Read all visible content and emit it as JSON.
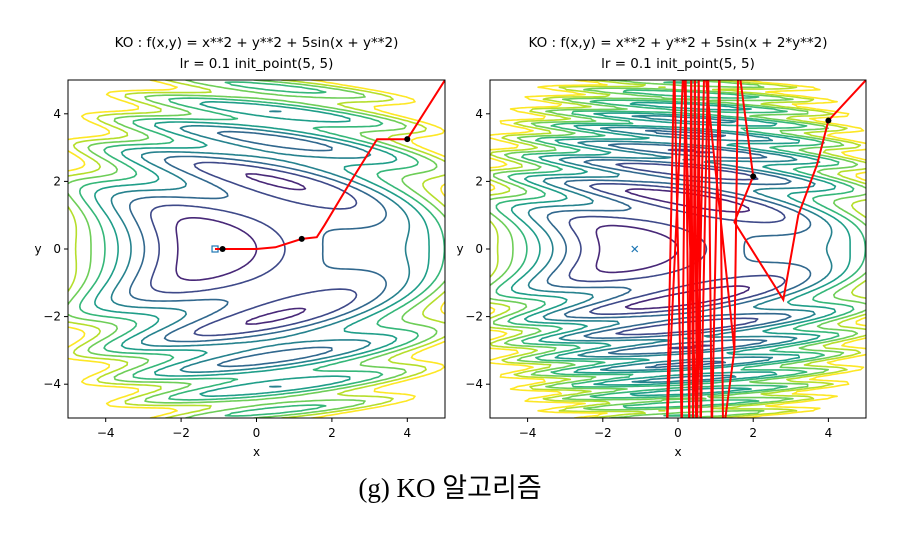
{
  "chart_data": [
    {
      "type": "contour",
      "title": "KO : f(x,y) = x**2 + y**2 + 5sin(x + y**2)",
      "subtitle": "lr = 0.1      init_point(5, 5)",
      "xlabel": "x",
      "ylabel": "y",
      "xlim": [
        -5,
        5
      ],
      "ylim": [
        -5,
        5
      ],
      "xticks": [
        {
          "value": -4,
          "label": "−4"
        },
        {
          "value": -2,
          "label": "−2"
        },
        0,
        2,
        4
      ],
      "yticks": [
        {
          "value": -4,
          "label": "−4"
        },
        {
          "value": -2,
          "label": "−2"
        },
        0,
        2,
        4
      ],
      "path": {
        "color": "#ff0000",
        "x": [
          5,
          4,
          3.2,
          2.5,
          1.8,
          1.6,
          1.2,
          0.5,
          0,
          -0.9,
          -1.1
        ],
        "y": [
          5,
          3.25,
          3.25,
          2,
          0.7,
          0.35,
          0.3,
          0.05,
          0,
          0,
          0
        ]
      },
      "points": {
        "x": [
          4,
          1.2,
          -0.9
        ],
        "y": [
          3.25,
          0.3,
          0
        ]
      },
      "minimum": {
        "marker": "square",
        "color": "#1f77b4",
        "x": -1.1,
        "y": 0
      }
    },
    {
      "type": "contour",
      "title": "KO : f(x,y) = x**2 + y**2 + 5sin(x + 2*y**2)",
      "subtitle": "lr = 0.1      init_point(5, 5)",
      "xlabel": "x",
      "ylabel": "y",
      "xlim": [
        -5,
        5
      ],
      "ylim": [
        -5,
        5
      ],
      "xticks": [
        {
          "value": -4,
          "label": "−4"
        },
        {
          "value": -2,
          "label": "−2"
        },
        0,
        2,
        4
      ],
      "yticks": [
        {
          "value": -4,
          "label": "−4"
        },
        {
          "value": -2,
          "label": "−2"
        },
        0,
        2,
        4
      ],
      "path": {
        "color": "#ff0000",
        "x": [
          5,
          4,
          3.7,
          3.2,
          2.8,
          1.5,
          2,
          1.6,
          1.5,
          1.2,
          1.1,
          0.9,
          0.8,
          0.6,
          0.55,
          0.5,
          0.45,
          0.4,
          0.35,
          0.3,
          0.2,
          0.1,
          -0.1,
          -0.3,
          0.15,
          0.5,
          0.7,
          1.5,
          1.6
        ],
        "y": [
          5,
          3.8,
          2.5,
          1,
          -1.5,
          0.8,
          2.15,
          5.5,
          -3,
          -5.5,
          5.5,
          -5.5,
          5.5,
          -5.5,
          5.5,
          -5.5,
          5.5,
          -5.5,
          5.5,
          -5.5,
          5.5,
          -5.5,
          5.5,
          -5.5,
          5.5,
          -5.5,
          5.5,
          -3,
          5.5
        ]
      },
      "points": {
        "x": [
          4,
          2
        ],
        "y": [
          3.8,
          2.15
        ]
      },
      "minimum": {
        "marker": "x",
        "color": "#1f77b4",
        "x": -1.15,
        "y": 0
      }
    }
  ],
  "caption": "(g)  KO  알고리즘"
}
